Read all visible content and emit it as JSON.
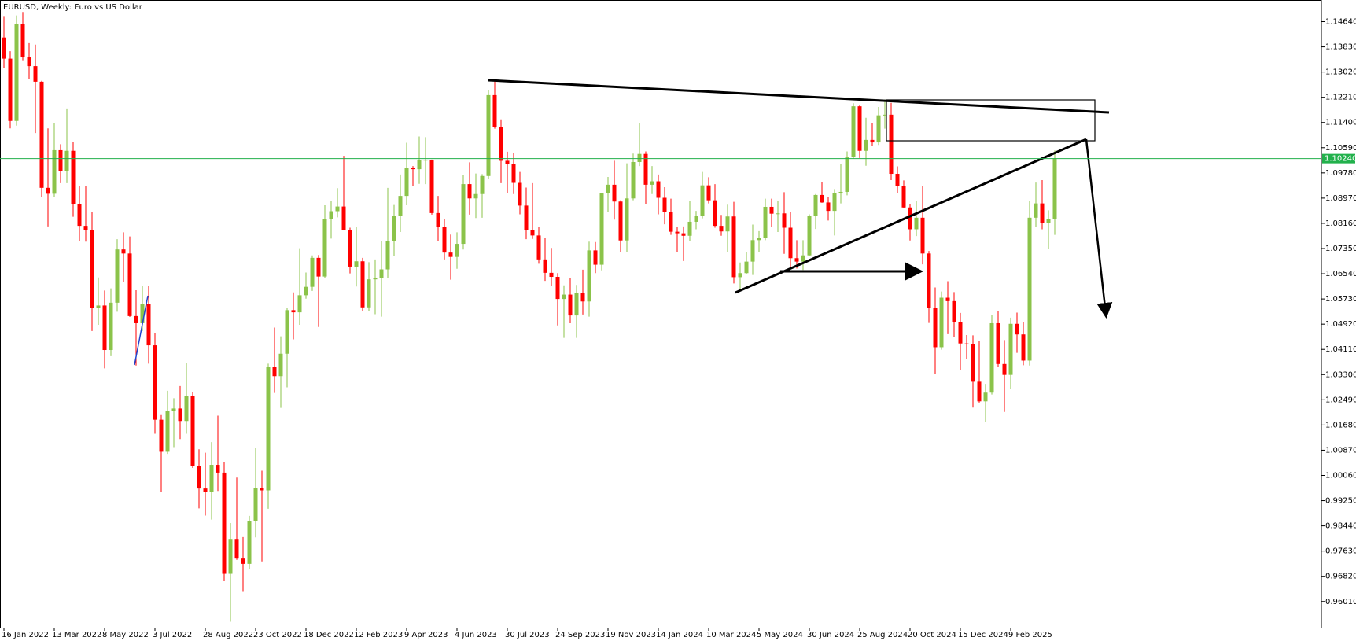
{
  "chart_data": {
    "type": "candlestick",
    "title": "EURUSD, Weekly:  Euro vs US Dollar",
    "categories": [
      "16 Jan 2022",
      null,
      null,
      null,
      null,
      null,
      null,
      null,
      "13 Mar 2022",
      null,
      null,
      null,
      null,
      null,
      null,
      null,
      "8 May 2022",
      null,
      null,
      null,
      null,
      null,
      null,
      null,
      "3 Jul 2022",
      null,
      null,
      null,
      null,
      null,
      null,
      null,
      "28 Aug 2022",
      null,
      null,
      null,
      null,
      null,
      null,
      null,
      "23 Oct 2022",
      null,
      null,
      null,
      null,
      null,
      null,
      null,
      "18 Dec 2022",
      null,
      null,
      null,
      null,
      null,
      null,
      null,
      "12 Feb 2023",
      null,
      null,
      null,
      null,
      null,
      null,
      null,
      "9 Apr 2023",
      null,
      null,
      null,
      null,
      null,
      null,
      null,
      "4 Jun 2023",
      null,
      null,
      null,
      null,
      null,
      null,
      null,
      "30 Jul 2023",
      null,
      null,
      null,
      null,
      null,
      null,
      null,
      "24 Sep 2023",
      null,
      null,
      null,
      null,
      null,
      null,
      null,
      "19 Nov 2023",
      null,
      null,
      null,
      null,
      null,
      null,
      null,
      "14 Jan 2024",
      null,
      null,
      null,
      null,
      null,
      null,
      null,
      "10 Mar 2024",
      null,
      null,
      null,
      null,
      null,
      null,
      null,
      "5 May 2024",
      null,
      null,
      null,
      null,
      null,
      null,
      null,
      "30 Jun 2024",
      null,
      null,
      null,
      null,
      null,
      null,
      null,
      "25 Aug 2024",
      null,
      null,
      null,
      null,
      null,
      null,
      null,
      "20 Oct 2024",
      null,
      null,
      null,
      null,
      null,
      null,
      null,
      "15 Dec 2024",
      null,
      null,
      null,
      null,
      null,
      null,
      null,
      "9 Feb 2025",
      null,
      null,
      null,
      null,
      null,
      null,
      null
    ],
    "ohlc": [
      [
        1.1413,
        1.1482,
        1.1315,
        1.1345
      ],
      [
        1.1345,
        1.1369,
        1.1121,
        1.1145
      ],
      [
        1.1145,
        1.1484,
        1.113,
        1.1457
      ],
      [
        1.1457,
        1.1495,
        1.134,
        1.1349
      ],
      [
        1.1349,
        1.1395,
        1.128,
        1.1321
      ],
      [
        1.1321,
        1.139,
        1.1106,
        1.1271
      ],
      [
        1.1271,
        1.1274,
        1.09,
        1.093
      ],
      [
        1.093,
        1.1121,
        1.0806,
        1.0911
      ],
      [
        1.0911,
        1.1137,
        1.09,
        1.1051
      ],
      [
        1.1051,
        1.107,
        1.0945,
        1.0983
      ],
      [
        1.0983,
        1.1185,
        1.0945,
        1.1049
      ],
      [
        1.1049,
        1.1076,
        1.0837,
        1.0877
      ],
      [
        1.0877,
        1.0935,
        1.0758,
        1.0808
      ],
      [
        1.0808,
        1.0936,
        1.0757,
        1.0795
      ],
      [
        1.0795,
        1.0852,
        1.047,
        1.0545
      ],
      [
        1.0545,
        1.0642,
        1.049,
        1.0552
      ],
      [
        1.0552,
        1.06,
        1.035,
        1.0409
      ],
      [
        1.0409,
        1.0607,
        1.0389,
        1.0561
      ],
      [
        1.0561,
        1.0765,
        1.0532,
        1.0732
      ],
      [
        1.0732,
        1.0787,
        1.0627,
        1.0719
      ],
      [
        1.0719,
        1.0774,
        1.0515,
        1.0518
      ],
      [
        1.0518,
        1.0601,
        1.0359,
        1.0495
      ],
      [
        1.0495,
        1.0614,
        1.047,
        1.0556
      ],
      [
        1.0556,
        1.0615,
        1.0365,
        1.0424
      ],
      [
        1.0424,
        1.0463,
        1.014,
        1.0185
      ],
      [
        1.0185,
        1.02,
        0.9952,
        1.0082
      ],
      [
        1.0082,
        1.0278,
        1.0075,
        1.0213
      ],
      [
        1.0213,
        1.0254,
        1.0097,
        1.0221
      ],
      [
        1.0221,
        1.0293,
        1.0123,
        1.0181
      ],
      [
        1.0181,
        1.0368,
        1.014,
        1.026
      ],
      [
        1.026,
        1.0273,
        1.003,
        1.0036
      ],
      [
        1.0036,
        1.009,
        0.99,
        0.9964
      ],
      [
        0.9964,
        1.0079,
        0.9877,
        0.9953
      ],
      [
        0.9953,
        1.0113,
        0.9864,
        1.004
      ],
      [
        1.004,
        1.0198,
        0.9956,
        1.0015
      ],
      [
        1.0015,
        1.005,
        0.9666,
        0.969
      ],
      [
        0.969,
        0.9853,
        0.9536,
        0.9802
      ],
      [
        0.9802,
        0.9999,
        0.9735,
        0.9739
      ],
      [
        0.9739,
        0.9808,
        0.9632,
        0.9722
      ],
      [
        0.9722,
        0.9876,
        0.9705,
        0.9859
      ],
      [
        0.9859,
        1.0094,
        0.9807,
        0.9965
      ],
      [
        0.9965,
        1.0021,
        0.973,
        0.9958
      ],
      [
        0.9958,
        1.0365,
        0.9899,
        1.0355
      ],
      [
        1.0355,
        1.0481,
        1.0271,
        1.0325
      ],
      [
        1.0325,
        1.0453,
        1.0223,
        1.0397
      ],
      [
        1.0397,
        1.0545,
        1.0289,
        1.0537
      ],
      [
        1.0537,
        1.0594,
        1.0443,
        1.053
      ],
      [
        1.053,
        1.0736,
        1.049,
        1.0585
      ],
      [
        1.0585,
        1.0658,
        1.0574,
        1.0612
      ],
      [
        1.0612,
        1.0713,
        1.0599,
        1.0705
      ],
      [
        1.0705,
        1.0714,
        1.0483,
        1.0645
      ],
      [
        1.0645,
        1.0874,
        1.0639,
        1.083
      ],
      [
        1.083,
        1.0887,
        1.0767,
        1.0855
      ],
      [
        1.0855,
        1.0929,
        1.0835,
        1.087
      ],
      [
        1.087,
        1.1033,
        1.0794,
        1.0795
      ],
      [
        1.0795,
        1.0802,
        1.0655,
        1.0677
      ],
      [
        1.0677,
        1.0805,
        1.0613,
        1.0694
      ],
      [
        1.0694,
        1.0705,
        1.0533,
        1.0546
      ],
      [
        1.0546,
        1.0691,
        1.0533,
        1.0636
      ],
      [
        1.0636,
        1.07,
        1.0524,
        1.064
      ],
      [
        1.064,
        1.076,
        1.0516,
        1.0668
      ],
      [
        1.0668,
        1.093,
        1.064,
        1.076
      ],
      [
        1.076,
        1.0875,
        1.0712,
        1.084
      ],
      [
        1.084,
        1.0973,
        1.0788,
        1.0904
      ],
      [
        1.0904,
        1.1075,
        1.0874,
        1.0993
      ],
      [
        1.0993,
        1.1,
        1.0937,
        1.099
      ],
      [
        1.099,
        1.1095,
        1.0943,
        1.1018
      ],
      [
        1.1018,
        1.1093,
        1.0942,
        1.102
      ],
      [
        1.102,
        1.1021,
        1.0844,
        1.0849
      ],
      [
        1.0849,
        1.0904,
        1.076,
        1.0805
      ],
      [
        1.0805,
        1.083,
        1.07,
        1.0722
      ],
      [
        1.0722,
        1.078,
        1.0635,
        1.0708
      ],
      [
        1.0708,
        1.0787,
        1.067,
        1.075
      ],
      [
        1.075,
        1.0971,
        1.0732,
        1.0942
      ],
      [
        1.0942,
        1.1012,
        1.0844,
        1.0896
      ],
      [
        1.0896,
        1.0976,
        1.0833,
        1.091
      ],
      [
        1.091,
        1.0974,
        1.0834,
        1.0968
      ],
      [
        1.0968,
        1.1245,
        1.096,
        1.1228
      ],
      [
        1.1228,
        1.1276,
        1.112,
        1.1125
      ],
      [
        1.1125,
        1.115,
        1.0945,
        1.1017
      ],
      [
        1.1017,
        1.1046,
        1.0912,
        1.1006
      ],
      [
        1.1006,
        1.1042,
        1.091,
        1.0946
      ],
      [
        1.0946,
        1.0981,
        1.0845,
        1.0873
      ],
      [
        1.0873,
        1.0931,
        1.0765,
        1.0795
      ],
      [
        1.0795,
        1.0945,
        1.0766,
        1.0777
      ],
      [
        1.0777,
        1.0805,
        1.0686,
        1.07
      ],
      [
        1.07,
        1.0769,
        1.0631,
        1.0657
      ],
      [
        1.0657,
        1.0737,
        1.0616,
        1.0644
      ],
      [
        1.0644,
        1.0656,
        1.0488,
        1.0573
      ],
      [
        1.0573,
        1.0617,
        1.0448,
        1.0587
      ],
      [
        1.0587,
        1.064,
        1.0495,
        1.052
      ],
      [
        1.052,
        1.0618,
        1.0448,
        1.0593
      ],
      [
        1.0593,
        1.0667,
        1.0523,
        1.0565
      ],
      [
        1.0565,
        1.0757,
        1.0516,
        1.0729
      ],
      [
        1.0729,
        1.0756,
        1.0656,
        1.0683
      ],
      [
        1.0683,
        1.0913,
        1.0665,
        1.0912
      ],
      [
        1.0912,
        1.0965,
        1.0852,
        1.094
      ],
      [
        1.094,
        1.1017,
        1.0828,
        1.0886
      ],
      [
        1.0886,
        1.089,
        1.0723,
        1.0761
      ],
      [
        1.0761,
        1.1009,
        1.0723,
        1.0896
      ],
      [
        1.0896,
        1.104,
        1.089,
        1.1013
      ],
      [
        1.1013,
        1.1139,
        1.1,
        1.1039
      ],
      [
        1.1039,
        1.1047,
        1.0877,
        1.094
      ],
      [
        1.094,
        1.1,
        1.091,
        1.0951
      ],
      [
        1.0951,
        1.0973,
        1.0845,
        1.0898
      ],
      [
        1.0898,
        1.0932,
        1.0813,
        1.0853
      ],
      [
        1.0853,
        1.0895,
        1.0779,
        1.0789
      ],
      [
        1.0789,
        1.0805,
        1.0723,
        1.0784
      ],
      [
        1.0784,
        1.0806,
        1.0695,
        1.0776
      ],
      [
        1.0776,
        1.0888,
        1.076,
        1.0821
      ],
      [
        1.0821,
        1.0856,
        1.0797,
        1.0839
      ],
      [
        1.0839,
        1.0981,
        1.0832,
        1.0938
      ],
      [
        1.0938,
        1.0964,
        1.088,
        1.089
      ],
      [
        1.089,
        1.0942,
        1.0802,
        1.0808
      ],
      [
        1.0808,
        1.0843,
        1.0776,
        1.079
      ],
      [
        1.079,
        1.0876,
        1.0724,
        1.0838
      ],
      [
        1.0838,
        1.0885,
        1.0623,
        1.0643
      ],
      [
        1.0643,
        1.069,
        1.0601,
        1.0656
      ],
      [
        1.0656,
        1.0724,
        1.0653,
        1.0693
      ],
      [
        1.0693,
        1.0812,
        1.065,
        1.0762
      ],
      [
        1.0762,
        1.0791,
        1.0723,
        1.077
      ],
      [
        1.077,
        1.0895,
        1.0762,
        1.0869
      ],
      [
        1.0869,
        1.0895,
        1.0805,
        1.0847
      ],
      [
        1.0847,
        1.0889,
        1.0788,
        1.0848
      ],
      [
        1.0848,
        1.0916,
        1.0718,
        1.0802
      ],
      [
        1.0802,
        1.0852,
        1.0668,
        1.0704
      ],
      [
        1.0704,
        1.0762,
        1.0671,
        1.0693
      ],
      [
        1.0693,
        1.0762,
        1.0666,
        1.0713
      ],
      [
        1.0713,
        1.0845,
        1.071,
        1.084
      ],
      [
        1.084,
        1.091,
        1.0798,
        1.0907
      ],
      [
        1.0907,
        1.0948,
        1.0882,
        1.0883
      ],
      [
        1.0883,
        1.0901,
        1.0825,
        1.0856
      ],
      [
        1.0856,
        1.0926,
        1.0777,
        1.0912
      ],
      [
        1.0912,
        1.1008,
        1.088,
        1.0917
      ],
      [
        1.0917,
        1.1047,
        1.0906,
        1.1028
      ],
      [
        1.1028,
        1.1202,
        1.1024,
        1.1192
      ],
      [
        1.1192,
        1.1196,
        1.1026,
        1.1049
      ],
      [
        1.1049,
        1.1155,
        1.1001,
        1.1084
      ],
      [
        1.1084,
        1.1138,
        1.1066,
        1.1076
      ],
      [
        1.1076,
        1.119,
        1.1068,
        1.1163
      ],
      [
        1.1163,
        1.1214,
        1.112,
        1.1165
      ],
      [
        1.1165,
        1.1203,
        1.0955,
        1.0975
      ],
      [
        1.0975,
        1.0999,
        1.0914,
        1.0937
      ],
      [
        1.0937,
        1.0954,
        1.0865,
        1.0867
      ],
      [
        1.0867,
        1.0879,
        1.0761,
        1.0797
      ],
      [
        1.0797,
        1.0887,
        1.0775,
        1.0834
      ],
      [
        1.0834,
        1.0937,
        1.0684,
        1.0719
      ],
      [
        1.0719,
        1.0727,
        1.0496,
        1.0543
      ],
      [
        1.0543,
        1.061,
        1.0333,
        1.0418
      ],
      [
        1.0418,
        1.0597,
        1.041,
        1.0577
      ],
      [
        1.0577,
        1.063,
        1.046,
        1.0566
      ],
      [
        1.0566,
        1.0595,
        1.0452,
        1.05
      ],
      [
        1.05,
        1.0528,
        1.0344,
        1.043
      ],
      [
        1.043,
        1.0457,
        1.038,
        1.0428
      ],
      [
        1.0428,
        1.0456,
        1.0224,
        1.0307
      ],
      [
        1.0307,
        1.0437,
        1.024,
        1.0244
      ],
      [
        1.0244,
        1.03,
        1.0178,
        1.0272
      ],
      [
        1.0272,
        1.0522,
        1.0266,
        1.0495
      ],
      [
        1.0495,
        1.0533,
        1.0355,
        1.0364
      ],
      [
        1.0364,
        1.0441,
        1.021,
        1.0329
      ],
      [
        1.0329,
        1.0513,
        1.0285,
        1.0493
      ],
      [
        1.0493,
        1.0529,
        1.04,
        1.0459
      ],
      [
        1.0459,
        1.05,
        1.036,
        1.0375
      ],
      [
        1.0375,
        1.0888,
        1.0359,
        1.0834
      ],
      [
        1.0834,
        1.0947,
        1.0805,
        1.088
      ],
      [
        1.088,
        1.0955,
        1.0797,
        1.0816
      ],
      [
        1.0816,
        1.0858,
        1.0733,
        1.0829
      ],
      [
        1.0829,
        1.105,
        1.0779,
        1.1024
      ]
    ],
    "up_color": "#8bc34a",
    "down_color": "#ff0000",
    "ylim": [
      0.9517,
      1.1531
    ],
    "yticks": [
      {
        "value": 0.9601,
        "label": "0.96010"
      },
      {
        "value": 0.9682,
        "label": "0.96820"
      },
      {
        "value": 0.9763,
        "label": "0.97630"
      },
      {
        "value": 0.9844,
        "label": "0.98440"
      },
      {
        "value": 0.9925,
        "label": "0.99250"
      },
      {
        "value": 1.0006,
        "label": "1.00060"
      },
      {
        "value": 1.0087,
        "label": "1.00870"
      },
      {
        "value": 1.0168,
        "label": "1.01680"
      },
      {
        "value": 1.0249,
        "label": "1.02490"
      },
      {
        "value": 1.033,
        "label": "1.03300"
      },
      {
        "value": 1.0411,
        "label": "1.04110"
      },
      {
        "value": 1.0492,
        "label": "1.04920"
      },
      {
        "value": 1.0573,
        "label": "1.05730"
      },
      {
        "value": 1.0654,
        "label": "1.06540"
      },
      {
        "value": 1.0735,
        "label": "1.07350"
      },
      {
        "value": 1.0816,
        "label": "1.08160"
      },
      {
        "value": 1.0897,
        "label": "1.08970"
      },
      {
        "value": 1.0978,
        "label": "1.09780"
      },
      {
        "value": 1.1059,
        "label": "1.10590"
      },
      {
        "value": 1.114,
        "label": "1.11400"
      },
      {
        "value": 1.1221,
        "label": "1.12210"
      },
      {
        "value": 1.1302,
        "label": "1.13020"
      },
      {
        "value": 1.1383,
        "label": "1.13830"
      },
      {
        "value": 1.1464,
        "label": "1.14640"
      }
    ],
    "current_price": {
      "value": 1.1024,
      "label": "1.10240"
    },
    "current_price_color": "#22b14c",
    "grid": false
  }
}
